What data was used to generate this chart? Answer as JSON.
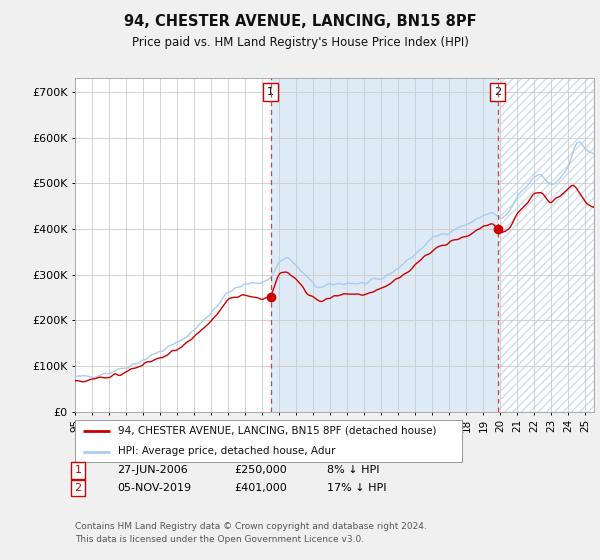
{
  "title": "94, CHESTER AVENUE, LANCING, BN15 8PF",
  "subtitle": "Price paid vs. HM Land Registry's House Price Index (HPI)",
  "ylabel_ticks": [
    "£0",
    "£100K",
    "£200K",
    "£300K",
    "£400K",
    "£500K",
    "£600K",
    "£700K"
  ],
  "ytick_values": [
    0,
    100000,
    200000,
    300000,
    400000,
    500000,
    600000,
    700000
  ],
  "ylim": [
    0,
    730000
  ],
  "sale1_t": 2006.5,
  "sale1_price": 250000,
  "sale2_t": 2019.83,
  "sale2_price": 401000,
  "legend_label1": "94, CHESTER AVENUE, LANCING, BN15 8PF (detached house)",
  "legend_label2": "HPI: Average price, detached house, Adur",
  "footnote1": "Contains HM Land Registry data © Crown copyright and database right 2024.",
  "footnote2": "This data is licensed under the Open Government Licence v3.0.",
  "line_color_red": "#cc0000",
  "line_color_blue": "#7ab0d4",
  "line_color_blue_light": "#aaccee",
  "shade_color": "#deeaf5",
  "vline_color": "#cc4444",
  "background_color": "#f0f0f0",
  "plot_bg_color": "#ffffff",
  "grid_color": "#cccccc",
  "xlim_start": 1995.0,
  "xlim_end": 2025.5,
  "hpi_keypoints_t": [
    1995,
    1996,
    1997,
    1998,
    1999,
    2000,
    2001,
    2002,
    2003,
    2004,
    2005,
    2006,
    2006.5,
    2007,
    2007.5,
    2008,
    2008.5,
    2009,
    2009.5,
    2010,
    2011,
    2012,
    2013,
    2014,
    2015,
    2016,
    2016.5,
    2017,
    2018,
    2018.5,
    2019,
    2019.5,
    2020,
    2020.5,
    2021,
    2021.5,
    2022,
    2022.3,
    2022.6,
    2023,
    2023.5,
    2024,
    2024.3,
    2024.6,
    2024.9,
    2025.2
  ],
  "hpi_keypoints_v": [
    75000,
    78000,
    86000,
    98000,
    113000,
    132000,
    150000,
    178000,
    218000,
    262000,
    278000,
    285000,
    290000,
    330000,
    340000,
    318000,
    300000,
    278000,
    270000,
    278000,
    282000,
    280000,
    290000,
    315000,
    345000,
    380000,
    388000,
    395000,
    410000,
    418000,
    430000,
    438000,
    420000,
    435000,
    470000,
    490000,
    515000,
    520000,
    510000,
    495000,
    510000,
    540000,
    570000,
    600000,
    580000,
    565000
  ],
  "red_keypoints_t": [
    1995,
    1996,
    1997,
    1998,
    1999,
    2000,
    2001,
    2002,
    2003,
    2004,
    2005,
    2006,
    2006.5,
    2007,
    2007.5,
    2008,
    2008.5,
    2009,
    2009.5,
    2010,
    2011,
    2012,
    2013,
    2014,
    2015,
    2016,
    2016.5,
    2017,
    2018,
    2018.5,
    2019,
    2019.5,
    2019.83,
    2020,
    2020.5,
    2021,
    2021.5,
    2022,
    2022.3,
    2022.6,
    2023,
    2023.5,
    2024,
    2024.3,
    2024.6,
    2024.9,
    2025.2
  ],
  "red_keypoints_v": [
    68000,
    70000,
    77000,
    88000,
    101000,
    118000,
    136000,
    162000,
    200000,
    243000,
    255000,
    248000,
    250000,
    310000,
    305000,
    288000,
    270000,
    248000,
    242000,
    252000,
    258000,
    256000,
    268000,
    292000,
    320000,
    355000,
    362000,
    370000,
    385000,
    393000,
    406000,
    412000,
    401000,
    388000,
    400000,
    435000,
    455000,
    478000,
    484000,
    472000,
    458000,
    472000,
    490000,
    500000,
    480000,
    462000,
    450000
  ]
}
